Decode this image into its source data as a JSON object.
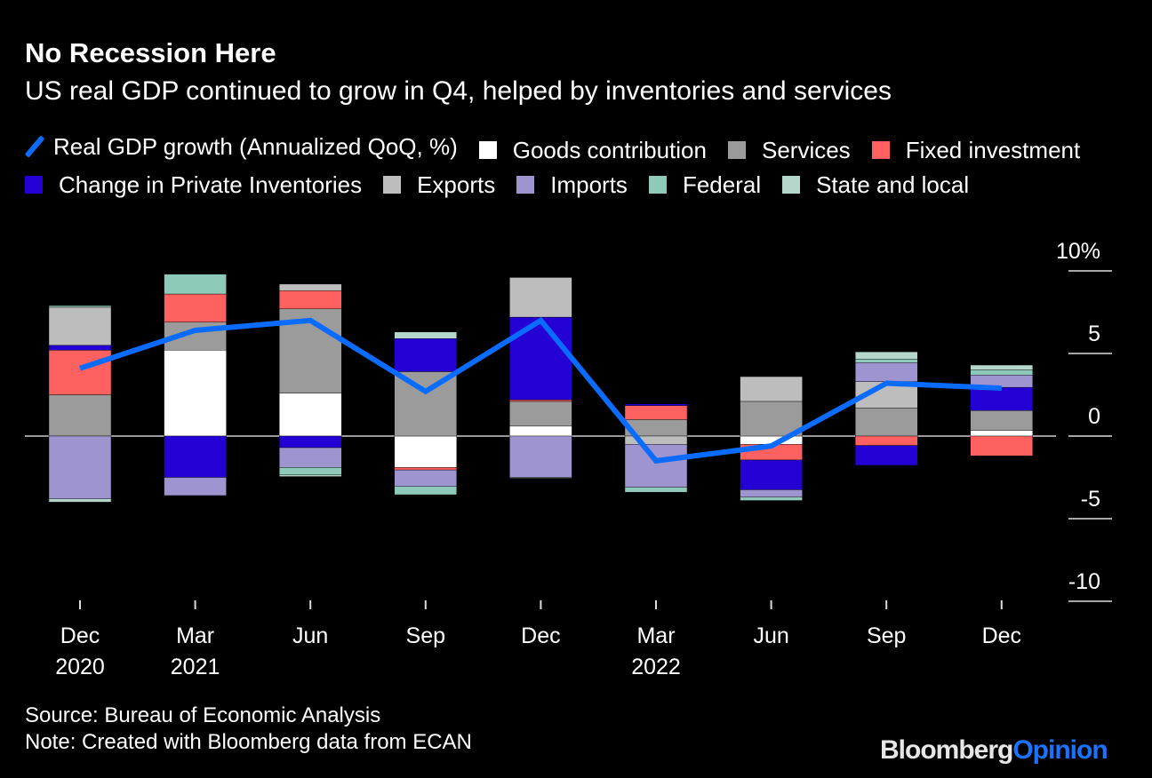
{
  "title": "No Recession Here",
  "subtitle": "US real GDP continued to grow in Q4, helped by inventories and services",
  "footer": {
    "source": "Source: Bureau of Economic Analysis",
    "note": "Note: Created with Bloomberg data from ECAN",
    "logo_part1": "Bloomberg",
    "logo_part2": "Opinion",
    "logo_colors": [
      "#e6e6e6",
      "#1a73ff"
    ]
  },
  "chart_data": {
    "type": "bar",
    "stacked": true,
    "title": "No Recession Here",
    "categories": [
      "Dec 2020",
      "Mar 2021",
      "Jun",
      "Sep",
      "Dec",
      "Mar 2022",
      "Jun",
      "Sep",
      "Dec"
    ],
    "x_tick_labels": [
      [
        "Dec",
        "2020"
      ],
      [
        "Mar",
        "2021"
      ],
      [
        "Jun",
        ""
      ],
      [
        "Sep",
        ""
      ],
      [
        "Dec",
        ""
      ],
      [
        "Mar",
        "2022"
      ],
      [
        "Jun",
        ""
      ],
      [
        "Sep",
        ""
      ],
      [
        "Dec",
        ""
      ]
    ],
    "ylim": [
      -10,
      10
    ],
    "y_ticks": [
      10,
      5,
      0,
      -5,
      -10
    ],
    "y_tick_labels": [
      "10%",
      "5",
      "0",
      "-5",
      "-10"
    ],
    "legend_position": "top",
    "line": {
      "name": "Real GDP growth (Annualized QoQ, %)",
      "color": "#0a6cff",
      "values": [
        4.1,
        6.4,
        7.0,
        2.7,
        7.0,
        -1.5,
        -0.6,
        3.2,
        2.9
      ]
    },
    "series": [
      {
        "name": "Goods contribution",
        "color": "#ffffff",
        "values": [
          0,
          5.2,
          2.6,
          -1.9,
          0.6,
          0,
          -0.5,
          0,
          0.35
        ]
      },
      {
        "name": "Services",
        "color": "#9b9b9b",
        "values": [
          2.5,
          1.7,
          5.1,
          3.9,
          1.5,
          1.0,
          2.1,
          1.7,
          1.2
        ]
      },
      {
        "name": "Fixed investment",
        "color": "#ff6161",
        "values": [
          2.7,
          1.7,
          1.1,
          -0.15,
          0.1,
          0.85,
          -0.95,
          -0.57,
          -1.2
        ]
      },
      {
        "name": "Change in Private Inventories",
        "color": "#2400d4",
        "values": [
          0.3,
          -2.5,
          -0.7,
          2.0,
          5.0,
          0.1,
          -1.8,
          -1.2,
          1.4
        ]
      },
      {
        "name": "Exports",
        "color": "#bdbdbd",
        "values": [
          2.3,
          0,
          0.4,
          0,
          2.4,
          -0.5,
          1.5,
          1.6,
          0
        ]
      },
      {
        "name": "Imports",
        "color": "#9e94d0",
        "values": [
          -3.8,
          -1.1,
          -1.2,
          -1.0,
          -2.5,
          -2.6,
          -0.45,
          1.15,
          0.75
        ]
      },
      {
        "name": "Federal",
        "color": "#8ecab9",
        "values": [
          0.1,
          1.2,
          -0.45,
          -0.5,
          0,
          -0.3,
          -0.2,
          0.2,
          0.3
        ]
      },
      {
        "name": "State and local",
        "color": "#b4d6cb",
        "values": [
          -0.2,
          0,
          -0.1,
          0.4,
          -0.05,
          0,
          0,
          0.45,
          0.3
        ]
      }
    ]
  }
}
